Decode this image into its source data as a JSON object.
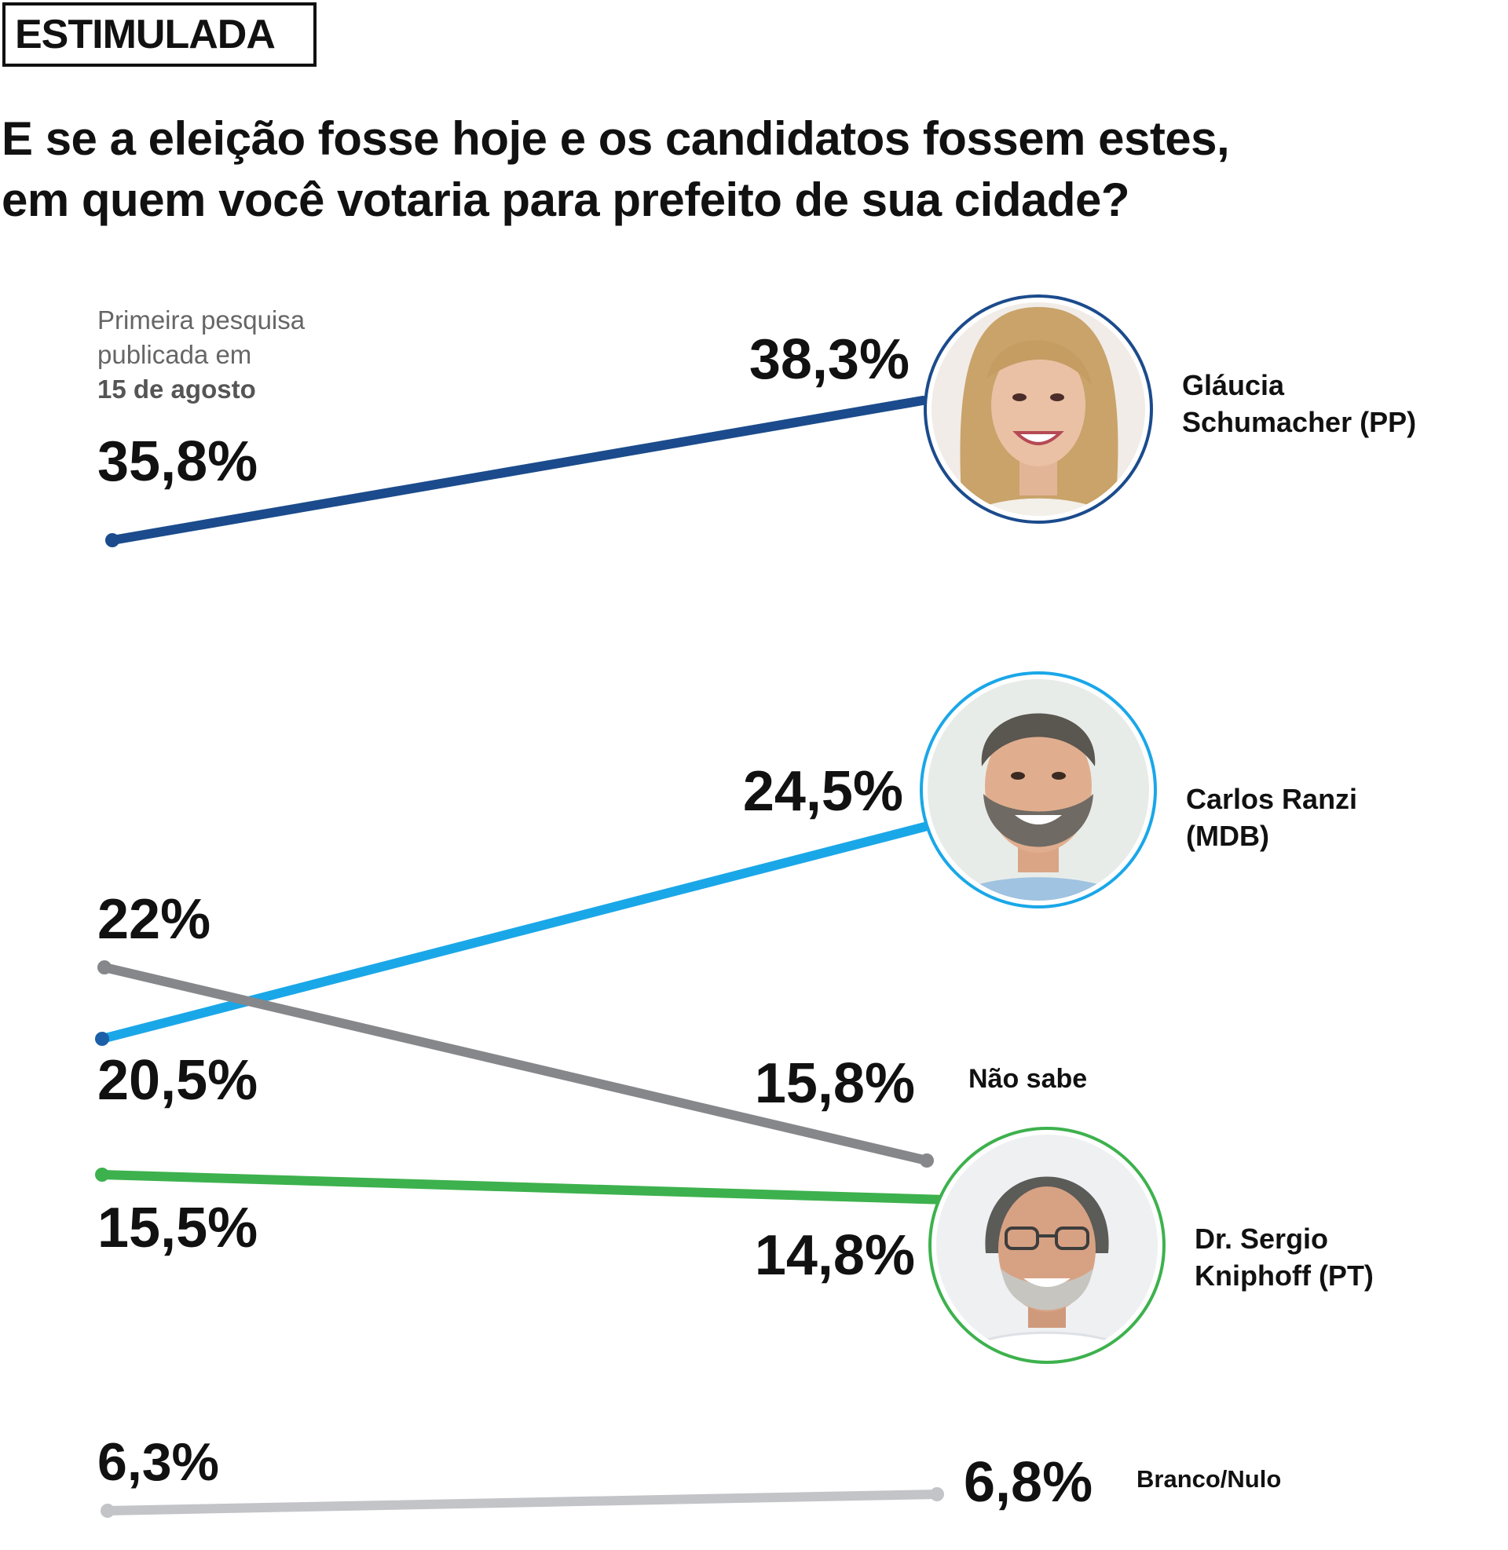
{
  "header": {
    "tag": "ESTIMULADA",
    "question_line1": "E se a eleição fosse hoje e os candidatos fossem estes,",
    "question_line2": "em quem você votaria para prefeito de sua cidade?"
  },
  "note": {
    "line1": "Primeira pesquisa",
    "line2": "publicada em",
    "line3": "15 de agosto"
  },
  "chart_data": {
    "type": "line",
    "series": [
      {
        "name": "Gláucia Schumacher (PP)",
        "label_lines": [
          "Gláucia",
          "Schumacher (PP)"
        ],
        "values": [
          35.8,
          38.3
        ],
        "start_label": "35,8%",
        "end_label": "38,3%",
        "color": "#1b4b8c",
        "avatar": "woman-portrait"
      },
      {
        "name": "Carlos Ranzi (MDB)",
        "label_lines": [
          "Carlos Ranzi",
          "(MDB)"
        ],
        "values": [
          20.5,
          24.5
        ],
        "start_label": "20,5%",
        "end_label": "24,5%",
        "color": "#1aa7e8",
        "avatar": "man-bearded-portrait"
      },
      {
        "name": "Não sabe",
        "label_lines": [
          "Não sabe"
        ],
        "values": [
          22,
          15.8
        ],
        "start_label": "22%",
        "end_label": "15,8%",
        "color": "#86878b",
        "avatar": ""
      },
      {
        "name": "Dr. Sergio Kniphoff (PT)",
        "label_lines": [
          "Dr. Sergio",
          "Kniphoff (PT)"
        ],
        "values": [
          15.5,
          14.8
        ],
        "start_label": "15,5%",
        "end_label": "14,8%",
        "color": "#3db14d",
        "avatar": "man-glasses-portrait"
      },
      {
        "name": "Branco/Nulo",
        "label_lines": [
          "Branco/Nulo"
        ],
        "values": [
          6.3,
          6.8
        ],
        "start_label": "6,3%",
        "end_label": "6,8%",
        "color": "#c3c4c8",
        "avatar": ""
      }
    ]
  }
}
